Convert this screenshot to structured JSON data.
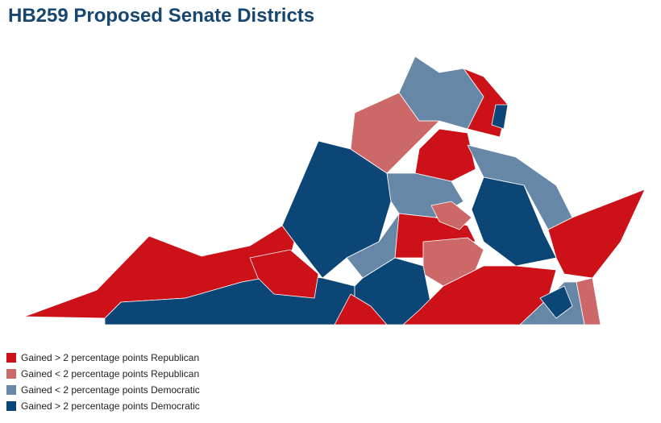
{
  "title": "HB259 Proposed Senate Districts",
  "legend": [
    {
      "label": "Gained > 2 percentage points Republican",
      "color": "#cc1118"
    },
    {
      "label": "Gained < 2 percentage points Republican",
      "color": "#cc6868"
    },
    {
      "label": "Gained < 2 percentage points Democratic",
      "color": "#6687a6"
    },
    {
      "label": "Gained > 2 percentage points Democratic",
      "color": "#0b4677"
    }
  ]
}
